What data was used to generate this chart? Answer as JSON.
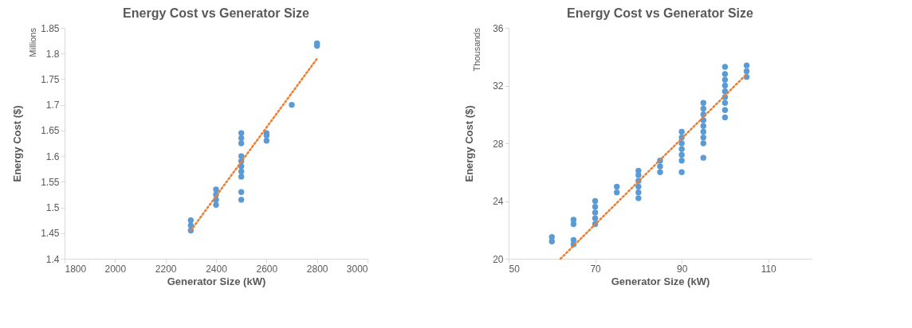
{
  "chart_data": [
    {
      "type": "scatter",
      "title": "Energy Cost vs Generator Size",
      "xlabel": "Generator Size (kW)",
      "ylabel": "Energy Cost ($)",
      "annotations": [
        "Millions"
      ],
      "xlim": [
        1800,
        3000
      ],
      "xticks": [
        1800,
        2000,
        2200,
        2400,
        2600,
        2800,
        3000
      ],
      "ylim": [
        1.4,
        1.85
      ],
      "yticks": [
        1.4,
        1.45,
        1.5,
        1.55,
        1.6,
        1.65,
        1.7,
        1.75,
        1.8,
        1.85
      ],
      "grid": false,
      "series": [
        {
          "marker": "circle",
          "color": "#5b9bd5",
          "x": [
            2300,
            2300,
            2300,
            2400,
            2400,
            2400,
            2400,
            2500,
            2500,
            2500,
            2500,
            2500,
            2500,
            2500,
            2500,
            2500,
            2500,
            2600,
            2600,
            2600,
            2700,
            2800,
            2800
          ],
          "values": [
            1.455,
            1.465,
            1.475,
            1.505,
            1.515,
            1.525,
            1.535,
            1.515,
            1.53,
            1.56,
            1.57,
            1.58,
            1.59,
            1.6,
            1.625,
            1.635,
            1.645,
            1.63,
            1.64,
            1.645,
            1.7,
            1.815,
            1.82
          ]
        },
        {
          "type": "line",
          "line_style": "dotted",
          "color": "#ed7d31",
          "x": [
            2300,
            2800
          ],
          "values": [
            1.455,
            1.79
          ]
        }
      ]
    },
    {
      "type": "scatter",
      "title": "Energy Cost vs Generator Size",
      "xlabel": "Generator Size (kW)",
      "ylabel": "Energy Cost ($)",
      "annotations": [
        "Thousands"
      ],
      "xlim": [
        50,
        120
      ],
      "xticks": [
        50,
        70,
        90,
        110
      ],
      "ylim": [
        20,
        36
      ],
      "yticks": [
        20,
        24,
        28,
        32,
        36
      ],
      "grid": false,
      "series": [
        {
          "marker": "circle",
          "color": "#5b9bd5",
          "x": [
            60,
            60,
            65,
            65,
            65,
            65,
            70,
            70,
            70,
            70,
            70,
            75,
            75,
            80,
            80,
            80,
            80,
            80,
            80,
            85,
            85,
            85,
            90,
            90,
            90,
            90,
            90,
            90,
            90,
            95,
            95,
            95,
            95,
            95,
            95,
            95,
            95,
            95,
            100,
            100,
            100,
            100,
            100,
            100,
            100,
            100,
            100,
            105,
            105,
            105
          ],
          "values": [
            21.2,
            21.5,
            21.0,
            21.3,
            22.4,
            22.7,
            22.4,
            22.8,
            23.2,
            23.6,
            24.0,
            24.6,
            25.0,
            24.2,
            24.6,
            25.0,
            25.4,
            25.8,
            26.1,
            26.0,
            26.4,
            26.8,
            26.0,
            26.8,
            27.2,
            27.6,
            28.0,
            28.4,
            28.8,
            27.0,
            28.0,
            28.4,
            28.8,
            29.2,
            29.6,
            30.0,
            30.4,
            30.8,
            29.8,
            30.3,
            30.8,
            31.2,
            31.6,
            32.0,
            32.4,
            32.8,
            33.3,
            32.6,
            33.0,
            33.4
          ]
        },
        {
          "type": "line",
          "line_style": "dotted",
          "color": "#ed7d31",
          "x": [
            62,
            105
          ],
          "values": [
            20,
            32.8
          ]
        }
      ]
    }
  ]
}
